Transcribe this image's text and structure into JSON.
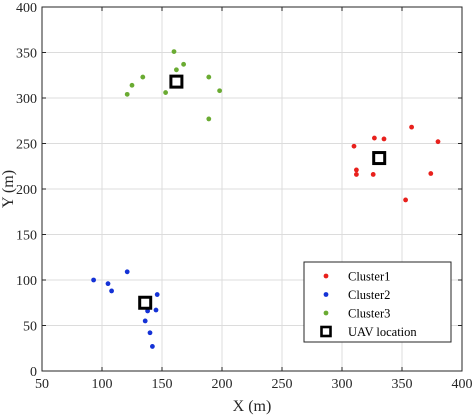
{
  "chart_data": {
    "type": "scatter",
    "xlabel": "X (m)",
    "ylabel": "Y (m)",
    "xlim": [
      50,
      400
    ],
    "ylim": [
      0,
      400
    ],
    "xticks": [
      50,
      100,
      150,
      200,
      250,
      300,
      350,
      400
    ],
    "yticks": [
      0,
      50,
      100,
      150,
      200,
      250,
      300,
      350,
      400
    ],
    "grid": true,
    "legend_position": "bottom-right",
    "series": [
      {
        "name": "Cluster1",
        "color": "#e8201c",
        "marker": "dot",
        "points": [
          [
            310,
            247
          ],
          [
            327,
            256
          ],
          [
            335,
            255
          ],
          [
            358,
            268
          ],
          [
            380,
            252
          ],
          [
            312,
            221
          ],
          [
            312,
            216
          ],
          [
            326,
            216
          ],
          [
            374,
            217
          ],
          [
            353,
            188
          ]
        ]
      },
      {
        "name": "Cluster2",
        "color": "#1432d6",
        "marker": "dot",
        "points": [
          [
            93,
            100
          ],
          [
            105,
            96
          ],
          [
            108,
            88
          ],
          [
            121,
            109
          ],
          [
            146,
            84
          ],
          [
            138,
            66
          ],
          [
            145,
            67
          ],
          [
            136,
            55
          ],
          [
            140,
            42
          ],
          [
            142,
            27
          ]
        ]
      },
      {
        "name": "Cluster3",
        "color": "#6aab32",
        "marker": "dot",
        "points": [
          [
            160,
            351
          ],
          [
            168,
            337
          ],
          [
            162,
            331
          ],
          [
            134,
            323
          ],
          [
            189,
            323
          ],
          [
            125,
            314
          ],
          [
            121,
            304
          ],
          [
            153,
            306
          ],
          [
            198,
            308
          ],
          [
            189,
            277
          ]
        ]
      },
      {
        "name": "UAV location",
        "color": "#000000",
        "marker": "square",
        "points": [
          [
            162,
            318
          ],
          [
            331,
            234
          ],
          [
            136,
            75
          ]
        ]
      }
    ]
  }
}
